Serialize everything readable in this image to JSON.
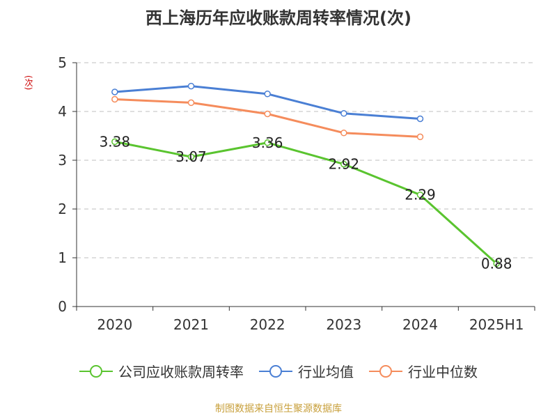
{
  "chart_data": {
    "type": "line",
    "title": "西上海历年应收账款周转率情况(次)",
    "ylabel": "(次)",
    "xlabel": "",
    "categories": [
      "2020",
      "2021",
      "2022",
      "2023",
      "2024",
      "2025H1"
    ],
    "ylim": [
      0,
      5
    ],
    "yticks": [
      0,
      1,
      2,
      3,
      4,
      5
    ],
    "grid": true,
    "legend_position": "bottom",
    "series": [
      {
        "name": "公司应收账款周转率",
        "color": "#5ac42f",
        "values": [
          3.38,
          3.07,
          3.36,
          2.92,
          2.29,
          0.88
        ],
        "labels": true
      },
      {
        "name": "行业均值",
        "color": "#4a7fd4",
        "values": [
          4.4,
          4.52,
          4.36,
          3.96,
          3.85,
          null
        ],
        "labels": false
      },
      {
        "name": "行业中位数",
        "color": "#f58c5c",
        "values": [
          4.25,
          4.18,
          3.95,
          3.56,
          3.48,
          null
        ],
        "labels": false
      }
    ]
  },
  "source": "制图数据来自恒生聚源数据库"
}
